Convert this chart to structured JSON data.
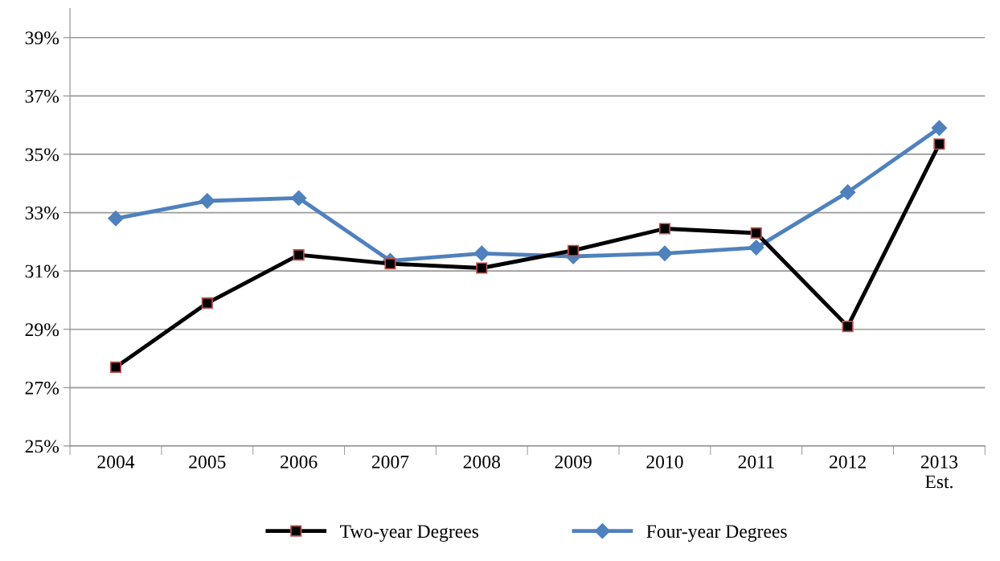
{
  "chart_data": {
    "type": "line",
    "categories": [
      "2004",
      "2005",
      "2006",
      "2007",
      "2008",
      "2009",
      "2010",
      "2011",
      "2012",
      "2013\nEst."
    ],
    "series": [
      {
        "name": "Two-year Degrees",
        "color": "#000000",
        "marker": "square",
        "values": [
          27.7,
          29.9,
          31.55,
          31.25,
          31.1,
          31.7,
          32.45,
          32.3,
          29.1,
          35.35
        ]
      },
      {
        "name": "Four-year Degrees",
        "color": "#4f81bd",
        "marker": "diamond",
        "values": [
          32.8,
          33.4,
          33.5,
          31.35,
          31.6,
          31.5,
          31.6,
          31.8,
          33.7,
          35.9
        ]
      }
    ],
    "ylim": [
      25,
      40
    ],
    "yticks": [
      {
        "value": 25,
        "label": "25%"
      },
      {
        "value": 27,
        "label": "27%"
      },
      {
        "value": 29,
        "label": "29%"
      },
      {
        "value": 31,
        "label": "31%"
      },
      {
        "value": 33,
        "label": "33%"
      },
      {
        "value": 35,
        "label": "35%"
      },
      {
        "value": 37,
        "label": "37%"
      },
      {
        "value": 39,
        "label": "39%"
      }
    ],
    "grid": "y",
    "legend": "bottom",
    "line_style": "solid"
  }
}
